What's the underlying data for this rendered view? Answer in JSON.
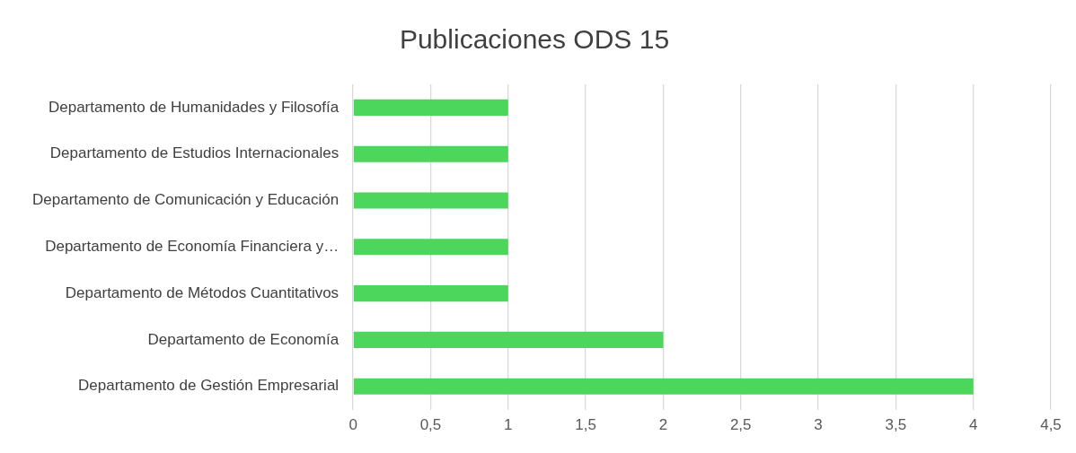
{
  "chart_data": {
    "type": "bar",
    "orientation": "horizontal",
    "title": "Publicaciones ODS 15",
    "categories": [
      "Departamento de Humanidades y Filosofía",
      "Departamento de Estudios Internacionales",
      "Departamento de Comunicación y Educación",
      "Departamento de Economía Financiera y…",
      "Departamento de Métodos Cuantitativos",
      "Departamento de Economía",
      "Departamento de Gestión Empresarial"
    ],
    "values": [
      1,
      1,
      1,
      1,
      1,
      2,
      4
    ],
    "color": "#4cd65c",
    "xlim": [
      0,
      4.5
    ],
    "xticks": [
      {
        "value": 0,
        "label": "0"
      },
      {
        "value": 0.5,
        "label": "0,5"
      },
      {
        "value": 1,
        "label": "1"
      },
      {
        "value": 1.5,
        "label": "1,5"
      },
      {
        "value": 2,
        "label": "2"
      },
      {
        "value": 2.5,
        "label": "2,5"
      },
      {
        "value": 3,
        "label": "3"
      },
      {
        "value": 3.5,
        "label": "3,5"
      },
      {
        "value": 4,
        "label": "4"
      },
      {
        "value": 4.5,
        "label": "4,5"
      }
    ],
    "grid": "x"
  }
}
